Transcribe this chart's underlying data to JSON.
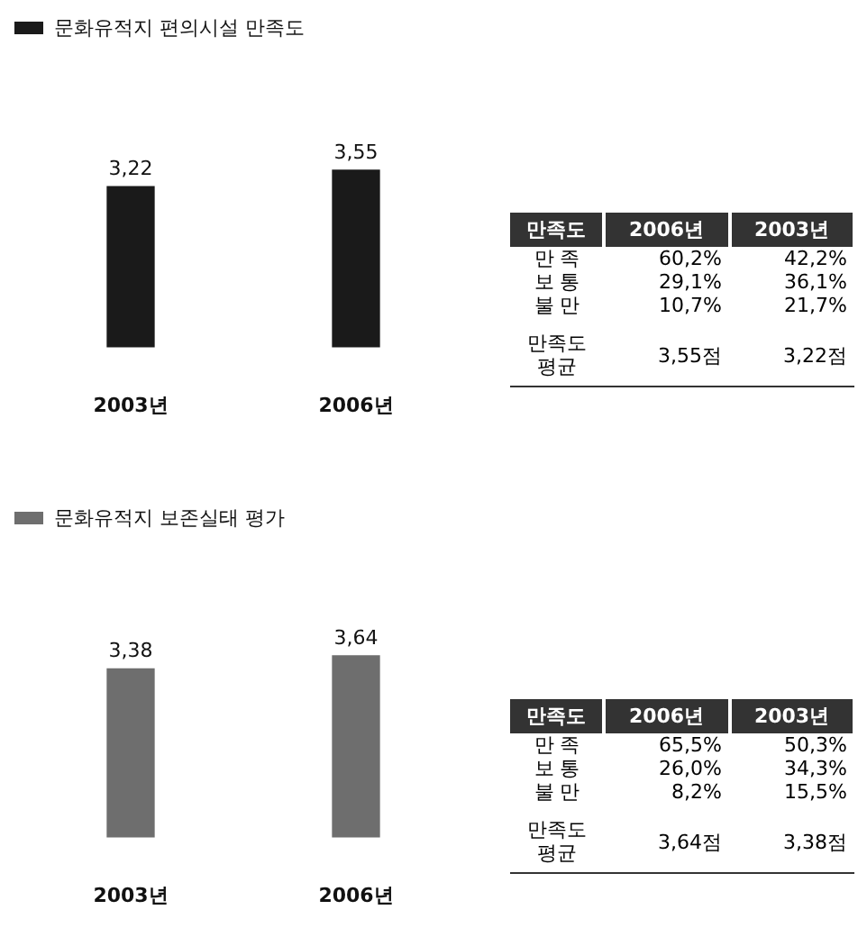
{
  "chart_data": [
    {
      "type": "bar",
      "title": "문화유적지 편의시설 만족도",
      "categories": [
        "2003년",
        "2006년"
      ],
      "values": [
        3.22,
        3.55
      ],
      "value_labels": [
        "3,22",
        "3,55"
      ],
      "color": "#1a1a1a"
    },
    {
      "type": "other",
      "legend_title": "만족도",
      "categories": [
        "만 족",
        "보 통",
        "불 만",
        "만족도 평균"
      ],
      "series": [
        {
          "name": "2006년",
          "values": [
            60.2,
            29.1,
            10.7,
            3.55
          ],
          "value_labels": [
            "60,2%",
            "29,1%",
            "10,7%",
            "3,55점"
          ]
        },
        {
          "name": "2003년",
          "values": [
            42.2,
            36.1,
            21.7,
            3.22
          ],
          "value_labels": [
            "42,2%",
            "36,1%",
            "21,7%",
            "3,22점"
          ]
        }
      ]
    },
    {
      "type": "bar",
      "title": "문화유적지 보존실태 평가",
      "categories": [
        "2003년",
        "2006년"
      ],
      "values": [
        3.38,
        3.64
      ],
      "value_labels": [
        "3,38",
        "3,64"
      ],
      "color": "#6e6e6e"
    },
    {
      "type": "other",
      "legend_title": "만족도",
      "categories": [
        "만 족",
        "보 통",
        "불 만",
        "만족도 평균"
      ],
      "series": [
        {
          "name": "2006년",
          "values": [
            65.5,
            26.0,
            8.2,
            3.64
          ],
          "value_labels": [
            "65,5%",
            "26,0%",
            "8,2%",
            "3,64점"
          ]
        },
        {
          "name": "2003년",
          "values": [
            50.3,
            34.3,
            15.5,
            3.38
          ],
          "value_labels": [
            "50,3%",
            "34,3%",
            "15,5%",
            "3,38점"
          ]
        }
      ]
    }
  ]
}
